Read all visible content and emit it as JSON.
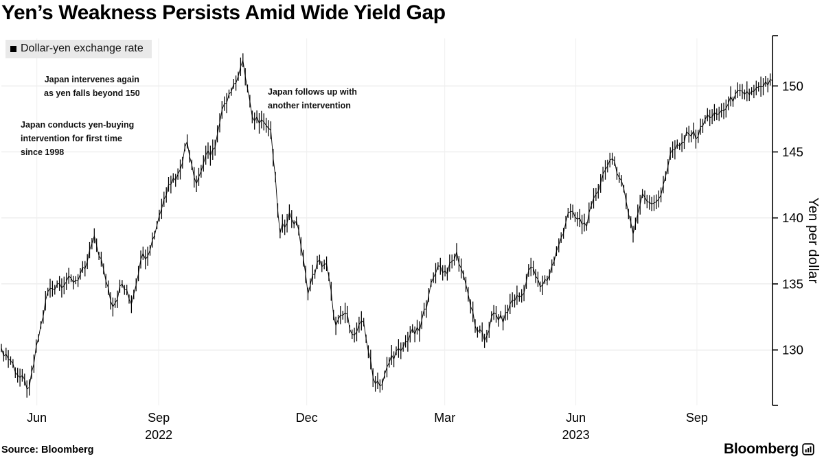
{
  "title": "Yen’s Weakness Persists Amid Wide Yield Gap",
  "legend": {
    "label": "Dollar-yen exchange rate",
    "marker": "square"
  },
  "source": "Source: Bloomberg",
  "brand": {
    "wordmark": "Bloomberg",
    "icon": "bloomberg-bars-icon"
  },
  "colors": {
    "series": "#000000",
    "grid": "#e4e4e4",
    "legend_bg": "#e9e9e9",
    "axis": "#000000"
  },
  "chart_data": {
    "type": "line",
    "title": "Yen's Weakness Persists Amid Wide Yield Gap",
    "xlabel": "",
    "ylabel": "Yen per dollar",
    "ylim": [
      125.8,
      153.6
    ],
    "y_ticks": [
      130,
      135,
      140,
      145,
      150
    ],
    "grid": true,
    "legend_position": "top-left",
    "x_range_note": "Weekly samples, May 2022 to late Oct 2023",
    "x_ticks": [
      {
        "label": "Jun",
        "pos": 0.046,
        "year": ""
      },
      {
        "label": "Sep",
        "pos": 0.204,
        "year": "2022"
      },
      {
        "label": "Dec",
        "pos": 0.396,
        "year": ""
      },
      {
        "label": "Mar",
        "pos": 0.575,
        "year": ""
      },
      {
        "label": "Jun",
        "pos": 0.745,
        "year": "2023"
      },
      {
        "label": "Sep",
        "pos": 0.902,
        "year": ""
      }
    ],
    "series": [
      {
        "name": "Dollar-yen exchange rate",
        "values": [
          130.1,
          129.2,
          127.9,
          127.1,
          130.9,
          134.4,
          135.0,
          135.2,
          135.3,
          136.1,
          138.6,
          136.1,
          133.3,
          135.0,
          133.5,
          136.9,
          137.6,
          140.2,
          142.6,
          143.3,
          145.8,
          142.6,
          144.7,
          145.3,
          148.7,
          150.1,
          151.9,
          147.6,
          147.5,
          146.6,
          138.8,
          140.4,
          139.1,
          134.3,
          136.6,
          136.5,
          131.8,
          132.8,
          131.1,
          132.1,
          127.9,
          127.4,
          129.6,
          129.9,
          131.2,
          131.4,
          134.2,
          136.4,
          135.8,
          137.4,
          135.0,
          131.8,
          130.7,
          132.8,
          132.1,
          133.8,
          134.1,
          136.3,
          134.8,
          135.7,
          137.9,
          140.4,
          139.9,
          139.4,
          141.8,
          143.7,
          144.3,
          142.2,
          138.8,
          141.8,
          141.1,
          141.7,
          144.9,
          145.4,
          146.4,
          146.2,
          147.8,
          147.8,
          148.3,
          149.4,
          149.3,
          149.6,
          149.9,
          150.4
        ]
      }
    ],
    "annotations": [
      {
        "lines": [
          "Japan intervenes again",
          "as yen falls beyond 150"
        ]
      },
      {
        "lines": [
          "Japan conducts yen-buying",
          "intervention for first time",
          "since 1998"
        ]
      },
      {
        "lines": [
          "Japan follows up with",
          "another intervention"
        ]
      }
    ]
  }
}
